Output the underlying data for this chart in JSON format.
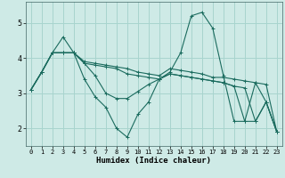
{
  "xlabel": "Humidex (Indice chaleur)",
  "bg_color": "#ceeae6",
  "grid_color": "#a8d4ce",
  "line_color": "#1a6b5e",
  "xlim": [
    -0.5,
    23.5
  ],
  "ylim": [
    1.5,
    5.6
  ],
  "yticks": [
    2,
    3,
    4,
    5
  ],
  "xticks": [
    0,
    1,
    2,
    3,
    4,
    5,
    6,
    7,
    8,
    9,
    10,
    11,
    12,
    13,
    14,
    15,
    16,
    17,
    18,
    19,
    20,
    21,
    22,
    23
  ],
  "lines": [
    {
      "x": [
        0,
        1,
        2,
        3,
        4,
        5,
        6,
        7,
        8,
        9,
        10,
        11,
        12,
        13,
        14,
        15,
        16,
        17,
        18,
        19,
        20,
        21,
        22,
        23
      ],
      "y": [
        3.1,
        3.6,
        4.15,
        4.15,
        4.15,
        3.9,
        3.85,
        3.8,
        3.75,
        3.7,
        3.6,
        3.55,
        3.5,
        3.7,
        3.65,
        3.6,
        3.55,
        3.45,
        3.45,
        3.4,
        3.35,
        3.3,
        3.25,
        1.9
      ]
    },
    {
      "x": [
        0,
        1,
        2,
        3,
        4,
        5,
        6,
        7,
        8,
        9,
        10,
        11,
        12,
        13,
        14,
        15,
        16,
        17,
        18,
        19,
        20,
        21,
        22,
        23
      ],
      "y": [
        3.1,
        3.6,
        4.15,
        4.6,
        4.15,
        3.4,
        2.9,
        2.6,
        2.0,
        1.75,
        2.4,
        2.75,
        3.4,
        3.6,
        4.15,
        5.2,
        5.3,
        4.85,
        3.5,
        2.2,
        2.2,
        3.3,
        2.75,
        1.9
      ]
    },
    {
      "x": [
        0,
        1,
        2,
        3,
        4,
        5,
        6,
        7,
        8,
        9,
        10,
        11,
        12,
        13,
        14,
        15,
        16,
        17,
        18,
        19,
        20,
        21,
        22,
        23
      ],
      "y": [
        3.1,
        3.6,
        4.15,
        4.15,
        4.15,
        3.85,
        3.8,
        3.75,
        3.7,
        3.55,
        3.5,
        3.45,
        3.4,
        3.55,
        3.5,
        3.45,
        3.4,
        3.35,
        3.3,
        3.2,
        3.15,
        2.2,
        2.75,
        1.9
      ]
    },
    {
      "x": [
        0,
        1,
        2,
        3,
        4,
        5,
        6,
        7,
        8,
        9,
        10,
        11,
        12,
        13,
        14,
        15,
        16,
        17,
        18,
        19,
        20,
        21,
        22,
        23
      ],
      "y": [
        3.1,
        3.6,
        4.15,
        4.15,
        4.15,
        3.85,
        3.5,
        3.0,
        2.85,
        2.85,
        3.05,
        3.25,
        3.4,
        3.55,
        3.5,
        3.45,
        3.4,
        3.35,
        3.3,
        3.2,
        2.2,
        2.2,
        2.75,
        1.9
      ]
    }
  ]
}
